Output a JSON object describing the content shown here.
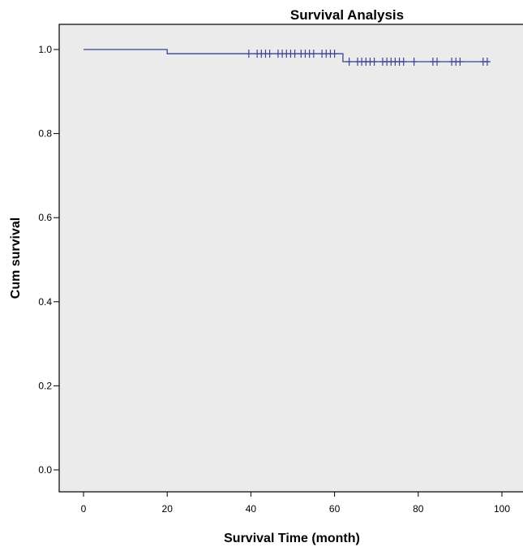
{
  "chart_data": {
    "type": "line",
    "title": "Survival Analysis",
    "xlabel": "Survival Time (month)",
    "ylabel": "Cum survival",
    "xlim": [
      0,
      100
    ],
    "ylim": [
      0.0,
      1.0
    ],
    "xticks": [
      0,
      20,
      40,
      60,
      80,
      100
    ],
    "xtick_labels": [
      "0",
      "20",
      "40",
      "60",
      "80",
      "100"
    ],
    "yticks": [
      0.0,
      0.2,
      0.4,
      0.6,
      0.8,
      1.0
    ],
    "ytick_labels": [
      "0.0",
      "0.2",
      "0.4",
      "0.6",
      "0.8",
      "1.0"
    ],
    "grid": false,
    "series": [
      {
        "step": {
          "x": [
            0,
            20,
            62,
            97
          ],
          "y": [
            1.0,
            0.99,
            0.971,
            0.971
          ]
        },
        "censored": [
          {
            "x": 39.5,
            "y": 0.99
          },
          {
            "x": 41.5,
            "y": 0.99
          },
          {
            "x": 42.5,
            "y": 0.99
          },
          {
            "x": 43.5,
            "y": 0.99
          },
          {
            "x": 44.5,
            "y": 0.99
          },
          {
            "x": 46.5,
            "y": 0.99
          },
          {
            "x": 47.5,
            "y": 0.99
          },
          {
            "x": 48.5,
            "y": 0.99
          },
          {
            "x": 49.5,
            "y": 0.99
          },
          {
            "x": 50.5,
            "y": 0.99
          },
          {
            "x": 52.0,
            "y": 0.99
          },
          {
            "x": 53.0,
            "y": 0.99
          },
          {
            "x": 54.0,
            "y": 0.99
          },
          {
            "x": 55.0,
            "y": 0.99
          },
          {
            "x": 57.0,
            "y": 0.99
          },
          {
            "x": 58.0,
            "y": 0.99
          },
          {
            "x": 59.0,
            "y": 0.99
          },
          {
            "x": 60.0,
            "y": 0.99
          },
          {
            "x": 63.5,
            "y": 0.971
          },
          {
            "x": 65.5,
            "y": 0.971
          },
          {
            "x": 66.5,
            "y": 0.971
          },
          {
            "x": 67.5,
            "y": 0.971
          },
          {
            "x": 68.5,
            "y": 0.971
          },
          {
            "x": 69.5,
            "y": 0.971
          },
          {
            "x": 71.5,
            "y": 0.971
          },
          {
            "x": 72.5,
            "y": 0.971
          },
          {
            "x": 73.5,
            "y": 0.971
          },
          {
            "x": 74.5,
            "y": 0.971
          },
          {
            "x": 75.5,
            "y": 0.971
          },
          {
            "x": 76.5,
            "y": 0.971
          },
          {
            "x": 79.0,
            "y": 0.971
          },
          {
            "x": 83.5,
            "y": 0.971
          },
          {
            "x": 84.5,
            "y": 0.971
          },
          {
            "x": 88.0,
            "y": 0.971
          },
          {
            "x": 89.0,
            "y": 0.971
          },
          {
            "x": 90.0,
            "y": 0.971
          },
          {
            "x": 95.5,
            "y": 0.971
          },
          {
            "x": 96.5,
            "y": 0.971
          }
        ]
      }
    ],
    "colors": {
      "plot_background": "#ebebeb",
      "series_line": "#3a449a",
      "axis": "#000000"
    }
  }
}
